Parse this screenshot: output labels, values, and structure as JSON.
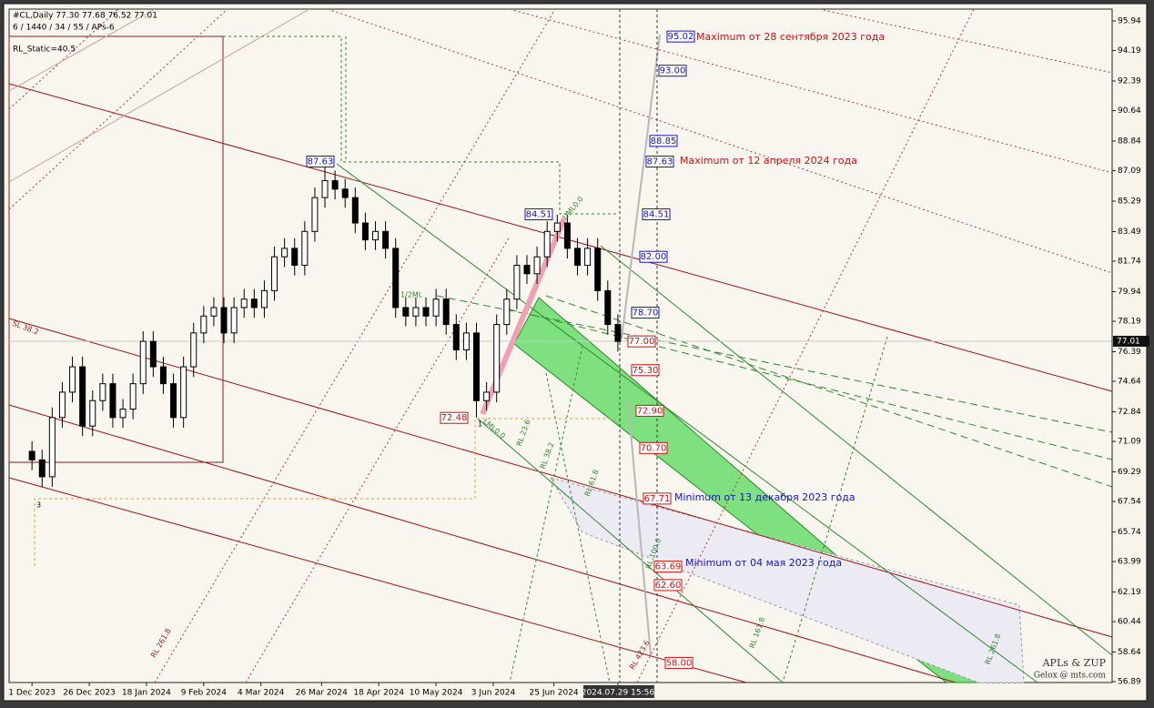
{
  "chart_data": {
    "type": "candlestick",
    "header": "#CL,Daily  77.30 77.68 76.52 77.01",
    "subheader": "6 / 1440 / 34 / 55 / APs-6",
    "static_label": "RL_Static=40.5",
    "watermark": "APLs & ZUP",
    "watermark_sub": "Gelox @ mts.com",
    "up_color": "#ffffff",
    "down_color": "#000000",
    "x": [
      0,
      3,
      6,
      9,
      12,
      15,
      18,
      21,
      24,
      27,
      30,
      33,
      36,
      39,
      42,
      45,
      48,
      51,
      54,
      57,
      60,
      63,
      66,
      69,
      72,
      75,
      78,
      81,
      84,
      87,
      90,
      93,
      96,
      99,
      102,
      105,
      108,
      111,
      114,
      117,
      120,
      123,
      126,
      129,
      132,
      135,
      138,
      141,
      144,
      147,
      150,
      153,
      156,
      159,
      162,
      165,
      168,
      171,
      174
    ],
    "open": [
      70.5,
      70.0,
      69.0,
      72.5,
      74.0,
      75.5,
      72.0,
      73.5,
      74.5,
      72.5,
      73.0,
      74.5,
      77.0,
      75.5,
      74.5,
      72.5,
      75.5,
      77.5,
      78.5,
      79.0,
      77.5,
      79.0,
      79.5,
      79.0,
      80.0,
      82.0,
      82.5,
      81.5,
      83.5,
      85.5,
      86.5,
      86.0,
      85.5,
      84.0,
      83.0,
      83.5,
      82.5,
      79.0,
      78.5,
      79.0,
      78.5,
      79.5,
      78.0,
      76.5,
      77.5,
      73.5,
      74.0,
      78.0,
      79.5,
      81.5,
      81.0,
      82.0,
      83.5,
      84.0,
      82.5,
      81.5,
      82.5,
      80.0,
      78.0
    ],
    "high": [
      71.1,
      70.6,
      73.1,
      74.6,
      76.1,
      76.1,
      74.1,
      75.1,
      75.1,
      73.6,
      75.1,
      77.6,
      77.6,
      76.1,
      75.1,
      76.1,
      78.1,
      79.1,
      79.6,
      79.6,
      79.6,
      80.1,
      80.1,
      80.6,
      82.6,
      83.1,
      83.1,
      84.1,
      86.1,
      87.6,
      87.1,
      86.6,
      86.1,
      84.6,
      84.1,
      84.1,
      83.1,
      79.6,
      79.6,
      79.6,
      80.1,
      80.1,
      78.6,
      78.1,
      78.1,
      74.6,
      78.6,
      80.1,
      82.1,
      82.1,
      82.6,
      84.1,
      84.5,
      84.5,
      83.1,
      83.1,
      83.1,
      80.6,
      78.6
    ],
    "low": [
      69.4,
      68.4,
      68.4,
      71.9,
      73.4,
      71.4,
      71.4,
      72.9,
      71.9,
      71.9,
      72.4,
      73.9,
      74.9,
      73.9,
      71.9,
      71.9,
      74.9,
      76.9,
      77.9,
      76.9,
      76.9,
      78.4,
      78.4,
      78.4,
      79.4,
      81.4,
      80.9,
      80.9,
      82.9,
      84.9,
      85.4,
      84.9,
      83.4,
      82.4,
      82.4,
      81.9,
      78.4,
      77.9,
      77.9,
      77.9,
      77.9,
      77.4,
      75.9,
      75.9,
      72.5,
      72.9,
      73.4,
      77.4,
      78.9,
      80.4,
      80.4,
      81.4,
      82.9,
      81.9,
      80.9,
      80.9,
      79.4,
      77.4,
      76.4
    ],
    "close": [
      70.0,
      69.0,
      72.5,
      74.0,
      75.5,
      72.0,
      73.5,
      74.5,
      72.5,
      73.0,
      74.5,
      77.0,
      75.5,
      74.5,
      72.5,
      75.5,
      77.5,
      78.5,
      79.0,
      77.5,
      79.0,
      79.5,
      79.0,
      80.0,
      82.0,
      82.5,
      81.5,
      83.5,
      85.5,
      86.5,
      86.0,
      85.5,
      84.0,
      83.0,
      83.5,
      82.5,
      79.0,
      78.5,
      79.0,
      78.5,
      79.5,
      78.0,
      76.5,
      77.5,
      73.5,
      74.0,
      78.0,
      79.5,
      81.5,
      81.0,
      82.0,
      83.5,
      84.0,
      82.5,
      81.5,
      82.5,
      80.0,
      78.0,
      77.0
    ],
    "xlim": [
      -6.8,
      320.8
    ],
    "xticks": [
      {
        "value": 0,
        "label": "1 Dec 2023"
      },
      {
        "value": 17,
        "label": "26 Dec 2023"
      },
      {
        "value": 34,
        "label": "18 Jan 2024"
      },
      {
        "value": 51,
        "label": "9 Feb 2024"
      },
      {
        "value": 68,
        "label": "4 Mar 2024"
      },
      {
        "value": 86,
        "label": "26 Mar 2024"
      },
      {
        "value": 103,
        "label": "18 Apr 2024"
      },
      {
        "value": 120,
        "label": "10 May 2024"
      },
      {
        "value": 137,
        "label": "3 Jun 2024"
      },
      {
        "value": 155,
        "label": "25 Jun 2024"
      },
      {
        "value": 174,
        "label": "2024.07.29 15:56"
      }
    ],
    "ylim": [
      56.84,
      96.64
    ],
    "yticks": [
      95.94,
      94.19,
      92.39,
      90.64,
      88.84,
      87.09,
      85.29,
      83.49,
      81.74,
      79.94,
      78.19,
      76.39,
      74.64,
      72.84,
      71.09,
      69.29,
      67.54,
      65.74,
      63.99,
      62.19,
      60.44,
      58.64,
      56.89
    ],
    "last_price": 77.01,
    "levels": {
      "values": [
        95.02,
        93.0,
        88.85,
        87.63,
        84.51,
        82.0,
        78.7,
        77.0,
        75.3,
        72.9,
        70.7,
        67.71,
        63.69,
        62.6,
        58.0,
        87.63,
        84.51,
        72.48
      ],
      "value_labels": [
        "95.02",
        "93.00",
        "88.85",
        "87.63",
        "84.51",
        "82.00",
        "78.70",
        "77.00",
        "75.30",
        "72.90",
        "70.70",
        "67.71",
        "63.69",
        "62.60",
        "58.00",
        "87.63",
        "84.51",
        "72.48"
      ],
      "colors": [
        "#1515c8",
        "#1515c8",
        "#1515c8",
        "#1515c8",
        "#1515c8",
        "#1515c8",
        "#1515c8",
        "#d01010",
        "#d01010",
        "#d01010",
        "#d01010",
        "#d01010",
        "#d01010",
        "#d01010",
        "#d01010",
        "#1515c8",
        "#1515c8",
        "#d01010"
      ]
    },
    "notes": [
      "Maximum от 28 сентября 2023 года",
      "Maximum от 12 апреля 2024 года",
      "Minimum от 13 декабря 2023 года",
      "Minimum от 04 мая 2023 года"
    ],
    "fib_labels": [
      "1/2ML",
      "UML0.0",
      "LML0.0",
      "RL 23.6",
      "RL 38.2",
      "RL 61.8",
      "RL 100.0",
      "RL 161.8",
      "RL 261.8",
      "RL 423.6",
      "RL 261.8",
      "SL 38.2",
      "3",
      "1"
    ]
  }
}
